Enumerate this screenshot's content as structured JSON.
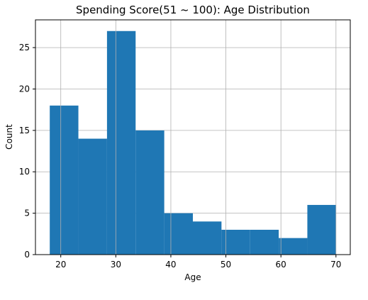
{
  "chart_data": {
    "type": "histogram",
    "title": "Spending Score(51 ~ 100): Age Distribution",
    "xlabel": "Age",
    "ylabel": "Count",
    "xlim": [
      15.4,
      72.6
    ],
    "ylim": [
      0,
      28.35
    ],
    "xticks": [
      20,
      30,
      40,
      50,
      60,
      70
    ],
    "yticks": [
      0,
      5,
      10,
      15,
      20,
      25
    ],
    "bins": [
      {
        "x0": 18.0,
        "x1": 23.2,
        "count": 18
      },
      {
        "x0": 23.2,
        "x1": 28.4,
        "count": 14
      },
      {
        "x0": 28.4,
        "x1": 33.6,
        "count": 27
      },
      {
        "x0": 33.6,
        "x1": 38.8,
        "count": 15
      },
      {
        "x0": 38.8,
        "x1": 44.0,
        "count": 5
      },
      {
        "x0": 44.0,
        "x1": 49.2,
        "count": 4
      },
      {
        "x0": 49.2,
        "x1": 54.4,
        "count": 3
      },
      {
        "x0": 54.4,
        "x1": 59.6,
        "count": 3
      },
      {
        "x0": 59.6,
        "x1": 64.8,
        "count": 2
      },
      {
        "x0": 64.8,
        "x1": 70.0,
        "count": 6
      }
    ],
    "grid": true,
    "bar_color": "#1f77b4",
    "grid_color": "#b0b0b0"
  }
}
